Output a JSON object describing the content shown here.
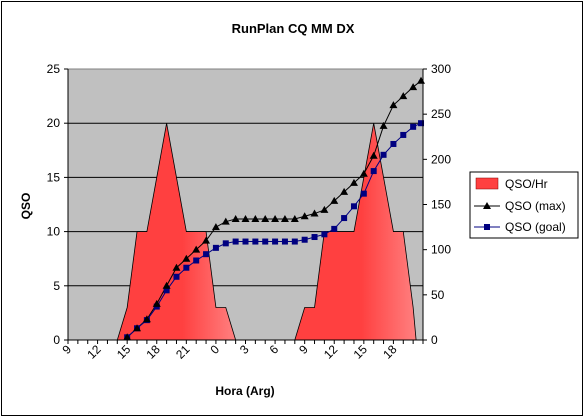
{
  "chart_data": {
    "type": "area+line",
    "title": "RunPlan CQ MM DX",
    "xlabel": "Hora (Arg)",
    "ylabel_left": "QSO",
    "y_left_lim": [
      0,
      25
    ],
    "y_left_ticks": [
      "0",
      "5",
      "10",
      "15",
      "20",
      "25"
    ],
    "y_right_lim": [
      0,
      300
    ],
    "y_right_ticks": [
      "0",
      "50",
      "100",
      "150",
      "200",
      "250",
      "300"
    ],
    "x_ticks": [
      "9",
      "12",
      "15",
      "18",
      "21",
      "0",
      "3",
      "6",
      "9",
      "12",
      "15",
      "18"
    ],
    "grid": true,
    "legend_position": "right",
    "colors": {
      "area": "#ff4040",
      "area_light": "#ff8080",
      "plot_bg": "#c0c0c0",
      "max": "#000000",
      "goal": "#000080"
    },
    "legend": [
      {
        "key": "qso_hr",
        "label": "QSO/Hr"
      },
      {
        "key": "qso_max",
        "label": "QSO (max)"
      },
      {
        "key": "qso_goal",
        "label": "QSO (goal)"
      }
    ],
    "series": [
      {
        "name": "QSO/Hr",
        "axis": "left",
        "points": [
          [
            14,
            0
          ],
          [
            15,
            3
          ],
          [
            16,
            10
          ],
          [
            17,
            10
          ],
          [
            19,
            20
          ],
          [
            21,
            10
          ],
          [
            23,
            10
          ],
          [
            24,
            3
          ],
          [
            25,
            3
          ],
          [
            26,
            0
          ],
          [
            32,
            0
          ],
          [
            33,
            3
          ],
          [
            34,
            3
          ],
          [
            35,
            10
          ],
          [
            38,
            10
          ],
          [
            40,
            20
          ],
          [
            42,
            10
          ],
          [
            43,
            10
          ],
          [
            44,
            3
          ],
          [
            44.3,
            0
          ]
        ]
      },
      {
        "name": "QSO (max)",
        "axis": "right",
        "points": [
          [
            15,
            3
          ],
          [
            16,
            13
          ],
          [
            17,
            23
          ],
          [
            18,
            40
          ],
          [
            19,
            60
          ],
          [
            20,
            80
          ],
          [
            21,
            90
          ],
          [
            22,
            100
          ],
          [
            23,
            110
          ],
          [
            24,
            125
          ],
          [
            25,
            131
          ],
          [
            26,
            134
          ],
          [
            27,
            134
          ],
          [
            28,
            134
          ],
          [
            29,
            134
          ],
          [
            30,
            134
          ],
          [
            31,
            134
          ],
          [
            32,
            134
          ],
          [
            33,
            137
          ],
          [
            34,
            140
          ],
          [
            35,
            144
          ],
          [
            36,
            154
          ],
          [
            37,
            164
          ],
          [
            38,
            174
          ],
          [
            39,
            184
          ],
          [
            40,
            204
          ],
          [
            41,
            237
          ],
          [
            42,
            260
          ],
          [
            43,
            270
          ],
          [
            44,
            280
          ],
          [
            44.8,
            287
          ]
        ]
      },
      {
        "name": "QSO (goal)",
        "axis": "right",
        "points": [
          [
            15,
            3
          ],
          [
            16,
            13
          ],
          [
            17,
            22
          ],
          [
            18,
            37
          ],
          [
            19,
            55
          ],
          [
            20,
            70
          ],
          [
            21,
            80
          ],
          [
            22,
            88
          ],
          [
            23,
            95
          ],
          [
            24,
            102
          ],
          [
            25,
            107
          ],
          [
            26,
            109
          ],
          [
            27,
            109
          ],
          [
            28,
            109
          ],
          [
            29,
            109
          ],
          [
            30,
            109
          ],
          [
            31,
            109
          ],
          [
            32,
            109
          ],
          [
            33,
            111
          ],
          [
            34,
            114
          ],
          [
            35,
            117
          ],
          [
            36,
            123
          ],
          [
            37,
            135
          ],
          [
            38,
            148
          ],
          [
            39,
            162
          ],
          [
            40,
            187
          ],
          [
            41,
            205
          ],
          [
            42,
            217
          ],
          [
            43,
            227
          ],
          [
            44,
            236
          ],
          [
            44.8,
            240
          ]
        ]
      }
    ]
  }
}
